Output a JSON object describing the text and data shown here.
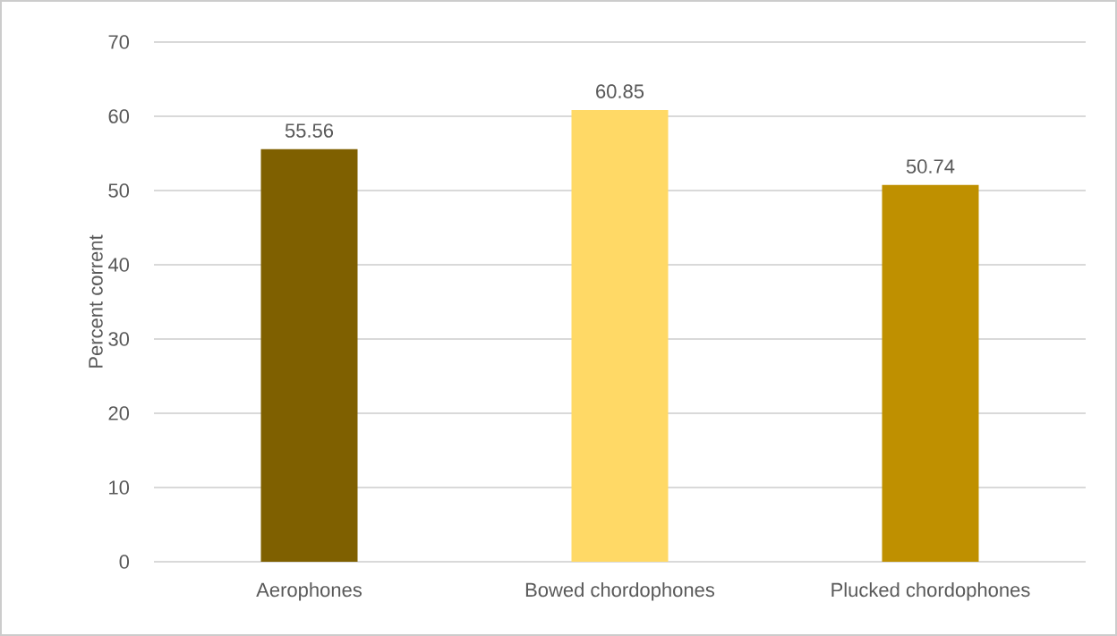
{
  "chart_data": {
    "type": "bar",
    "ylabel": "Percent corrent",
    "categories": [
      "Aerophones",
      "Bowed chordophones",
      "Plucked chordophones"
    ],
    "values": [
      55.56,
      60.85,
      50.74
    ],
    "colors": [
      "#7f6000",
      "#ffd966",
      "#bf9000"
    ],
    "ylim": [
      0,
      70
    ],
    "yticks": [
      0,
      10,
      20,
      30,
      40,
      50,
      60,
      70
    ],
    "grid": "y",
    "data_labels": true
  }
}
